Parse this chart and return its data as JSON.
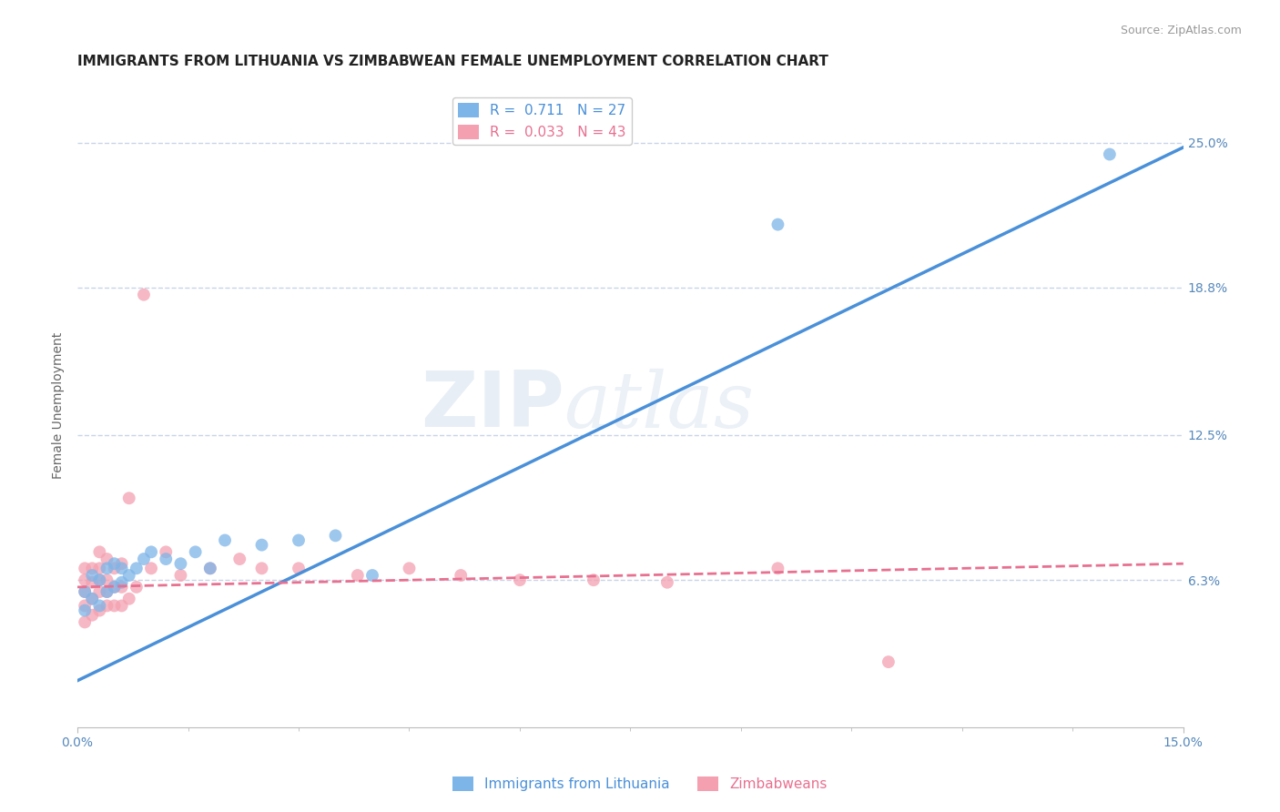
{
  "title": "IMMIGRANTS FROM LITHUANIA VS ZIMBABWEAN FEMALE UNEMPLOYMENT CORRELATION CHART",
  "source": "Source: ZipAtlas.com",
  "ylabel": "Female Unemployment",
  "x_min": 0.0,
  "x_max": 0.15,
  "y_min": 0.0,
  "y_max": 0.275,
  "x_tick_labels": [
    "0.0%",
    "15.0%"
  ],
  "y_ticks": [
    0.063,
    0.125,
    0.188,
    0.25
  ],
  "y_tick_labels": [
    "6.3%",
    "12.5%",
    "18.8%",
    "25.0%"
  ],
  "grid_color": "#c8d4e8",
  "background_color": "#ffffff",
  "blue_color": "#7EB5E8",
  "pink_color": "#F4A0B0",
  "blue_line_color": "#4A90D9",
  "pink_line_color": "#E87090",
  "legend_R_blue": "0.711",
  "legend_N_blue": "27",
  "legend_R_pink": "0.033",
  "legend_N_pink": "43",
  "legend_label_blue": "Immigrants from Lithuania",
  "legend_label_pink": "Zimbabweans",
  "watermark_zip": "ZIP",
  "watermark_atlas": "atlas",
  "blue_scatter_x": [
    0.001,
    0.001,
    0.002,
    0.002,
    0.003,
    0.003,
    0.004,
    0.004,
    0.005,
    0.005,
    0.006,
    0.006,
    0.007,
    0.008,
    0.009,
    0.01,
    0.012,
    0.014,
    0.016,
    0.018,
    0.02,
    0.025,
    0.03,
    0.035,
    0.04,
    0.095,
    0.14
  ],
  "blue_scatter_y": [
    0.05,
    0.058,
    0.055,
    0.065,
    0.052,
    0.063,
    0.058,
    0.068,
    0.06,
    0.07,
    0.062,
    0.068,
    0.065,
    0.068,
    0.072,
    0.075,
    0.072,
    0.07,
    0.075,
    0.068,
    0.08,
    0.078,
    0.08,
    0.082,
    0.065,
    0.215,
    0.245
  ],
  "pink_scatter_x": [
    0.001,
    0.001,
    0.001,
    0.001,
    0.001,
    0.002,
    0.002,
    0.002,
    0.002,
    0.003,
    0.003,
    0.003,
    0.003,
    0.003,
    0.004,
    0.004,
    0.004,
    0.004,
    0.005,
    0.005,
    0.005,
    0.006,
    0.006,
    0.006,
    0.007,
    0.007,
    0.008,
    0.009,
    0.01,
    0.012,
    0.014,
    0.018,
    0.022,
    0.025,
    0.03,
    0.038,
    0.045,
    0.052,
    0.06,
    0.07,
    0.08,
    0.095,
    0.11
  ],
  "pink_scatter_y": [
    0.045,
    0.052,
    0.058,
    0.063,
    0.068,
    0.048,
    0.055,
    0.062,
    0.068,
    0.05,
    0.058,
    0.063,
    0.068,
    0.075,
    0.052,
    0.058,
    0.063,
    0.072,
    0.052,
    0.06,
    0.068,
    0.052,
    0.06,
    0.07,
    0.055,
    0.098,
    0.06,
    0.185,
    0.068,
    0.075,
    0.065,
    0.068,
    0.072,
    0.068,
    0.068,
    0.065,
    0.068,
    0.065,
    0.063,
    0.063,
    0.062,
    0.068,
    0.028
  ],
  "blue_trend_x": [
    0.0,
    0.15
  ],
  "blue_trend_y": [
    0.02,
    0.248
  ],
  "pink_trend_x": [
    0.0,
    0.15
  ],
  "pink_trend_y": [
    0.06,
    0.07
  ],
  "title_fontsize": 11,
  "axis_label_fontsize": 10,
  "tick_fontsize": 10,
  "legend_fontsize": 11
}
